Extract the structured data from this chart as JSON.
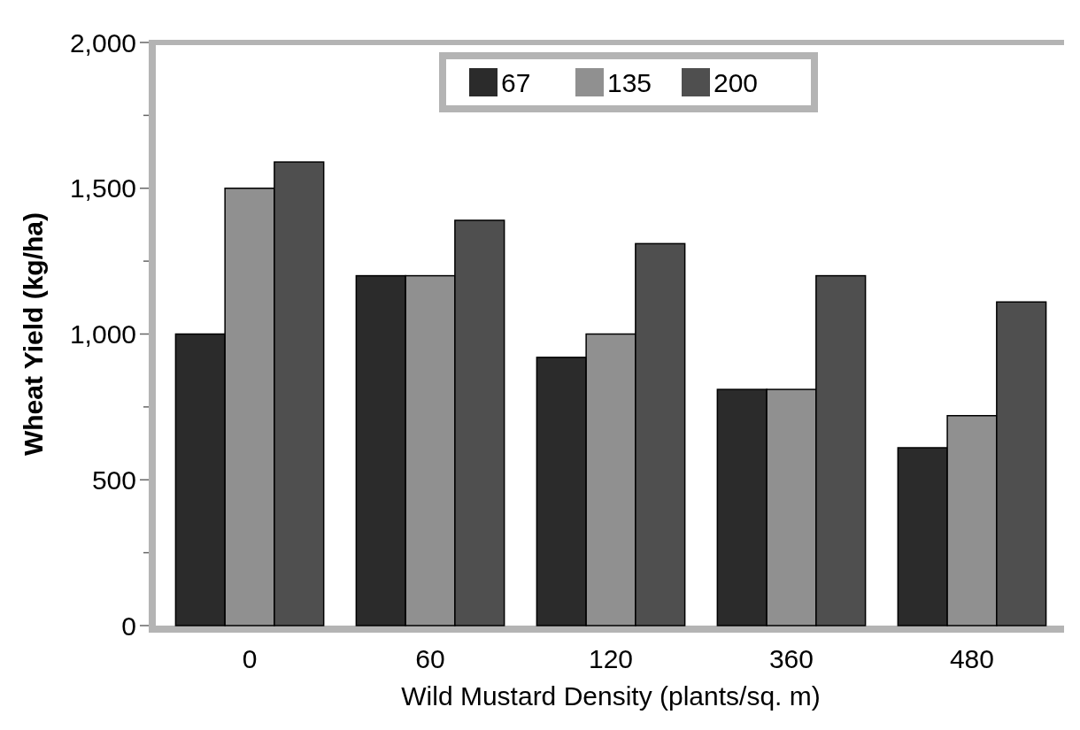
{
  "chart_data": {
    "type": "bar",
    "xlabel": "Wild Mustard Density (plants/sq. m)",
    "ylabel": "Wheat Yield (kg/ha)",
    "categories": [
      "0",
      "60",
      "120",
      "360",
      "480"
    ],
    "series": [
      {
        "name": "67",
        "color": "#2b2b2b",
        "values": [
          1000,
          1200,
          920,
          810,
          610
        ]
      },
      {
        "name": "135",
        "color": "#909090",
        "values": [
          1500,
          1200,
          1000,
          810,
          720
        ]
      },
      {
        "name": "200",
        "color": "#4f4f4f",
        "values": [
          1590,
          1390,
          1310,
          1200,
          1110
        ]
      }
    ],
    "ylim": [
      0,
      2000
    ],
    "yticks": [
      {
        "value": 0,
        "label": "0"
      },
      {
        "value": 250,
        "label": null
      },
      {
        "value": 500,
        "label": "500"
      },
      {
        "value": 750,
        "label": null
      },
      {
        "value": 1000,
        "label": "1,000"
      },
      {
        "value": 1250,
        "label": null
      },
      {
        "value": 1500,
        "label": "1,500"
      },
      {
        "value": 1750,
        "label": null
      },
      {
        "value": 2000,
        "label": "2,000"
      }
    ],
    "legend": "top",
    "grid": false
  }
}
